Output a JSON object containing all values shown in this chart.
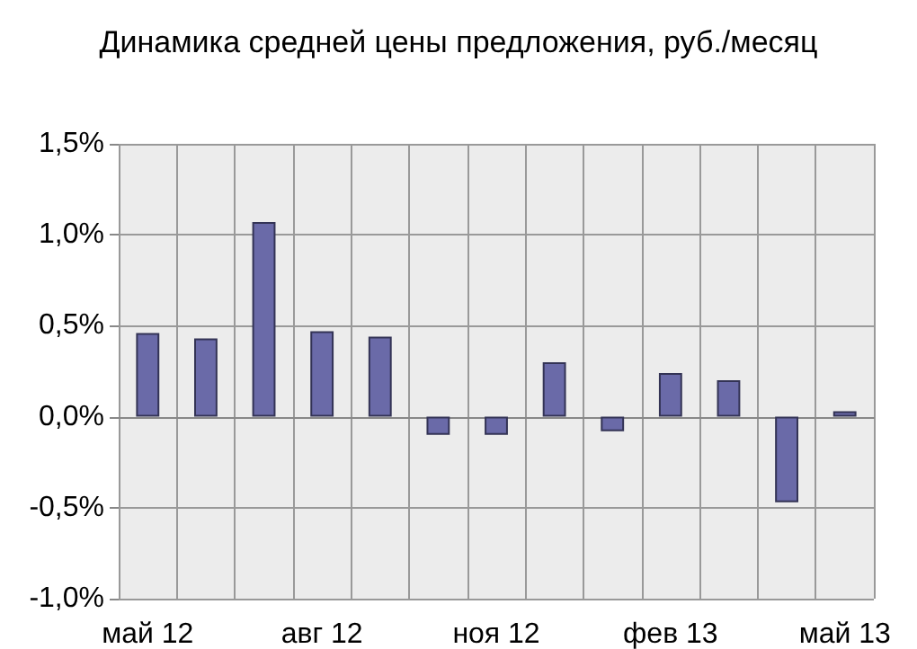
{
  "chart_data": {
    "type": "bar",
    "title": "Динамика средней цены предложения, руб./месяц",
    "categories": [
      "май 12",
      null,
      null,
      "авг 12",
      null,
      null,
      "ноя 12",
      null,
      null,
      "фев 13",
      null,
      null,
      "май 13"
    ],
    "values": [
      0.46,
      0.43,
      1.07,
      0.47,
      0.44,
      -0.1,
      -0.1,
      0.3,
      -0.08,
      0.24,
      0.2,
      -0.47,
      0.03
    ],
    "color": "#6a6aa8",
    "ylim": [
      -1.0,
      1.5
    ],
    "yticks": [
      {
        "value": -1.0,
        "label": "-1,0%"
      },
      {
        "value": -0.5,
        "label": "-0,5%"
      },
      {
        "value": 0,
        "label": "0,0%"
      },
      {
        "value": 0.5,
        "label": "0,5%"
      },
      {
        "value": 1.0,
        "label": "1,0%"
      },
      {
        "value": 1.5,
        "label": "1,5%"
      }
    ],
    "grid": true
  }
}
